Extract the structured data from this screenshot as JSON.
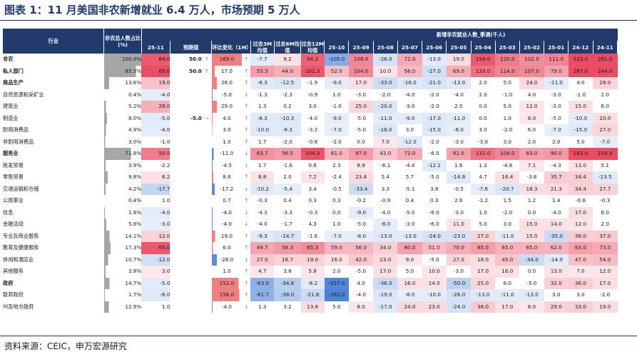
{
  "title": "图表 1：11 月美国非农新增就业 6.4 万人，市场预期 5 万人",
  "source": "资料来源：CEIC，申万宏源研究",
  "colors": {
    "header_bg": "#1f3a6b",
    "pos": "#e8384f",
    "neg": "#2f6fd1",
    "gray": "#a6a6a6",
    "mom_red": "#f08080",
    "mom_blue": "#5b8fd6"
  },
  "chart_data": {
    "type": "table",
    "header": {
      "industry": "行业",
      "share": "非农总人数占比(%)",
      "last": "25-11",
      "consensus": "预期值",
      "mom": "环比变化（1M）",
      "avg3m": "过去3M均值",
      "avg6m": "过去6M均值",
      "avg12m": "过去12M均值",
      "history_group": "新增非农就业人数_季调(千人)",
      "months": [
        "25-10",
        "25-09",
        "25-08",
        "25-07",
        "25-06",
        "25-05",
        "25-04",
        "25-03",
        "25-02",
        "25-01",
        "24-12",
        "24-11"
      ]
    },
    "rows": [
      {
        "name": "非农",
        "level": 0,
        "bold": true,
        "top": true,
        "share": "100.0%",
        "last": "64.0",
        "cons": "50.0",
        "cons_arrow": "up",
        "mom": "169.0",
        "mom_arrow": "up",
        "a3": "-7.7",
        "a6": "9.2",
        "a12": "94.2",
        "h": [
          "-105.0",
          "108.0",
          "-26.0",
          "72.0",
          "-13.0",
          "19.0",
          "158.0",
          "120.0",
          "102.0",
          "111.0",
          "323.0",
          "261.0"
        ]
      },
      {
        "name": "私人部门",
        "level": 1,
        "bold": true,
        "share": "85.3%",
        "last": "69.0",
        "cons": "50.0",
        "cons_arrow": "up",
        "mom": "17.0",
        "mom_arrow": "up",
        "a3": "55.3",
        "a6": "44.0",
        "a12": "102.3",
        "h": [
          "52.0",
          "104.0",
          "10.0",
          "56.0",
          "-27.0",
          "69.0",
          "133.0",
          "114.0",
          "107.0",
          "79.0",
          "287.0",
          "244.0"
        ]
      },
      {
        "name": "商品生产",
        "level": 2,
        "bold": true,
        "top": true,
        "share": "13.6%",
        "last": "19.0",
        "cons": "",
        "cons_arrow": "",
        "mom": "28.0",
        "mom_arrow": "up",
        "a3": "-8.3",
        "a6": "-12.5",
        "a12": "-1.9",
        "h": [
          "-9.0",
          "17.0",
          "-33.0",
          "-16.0",
          "-21.0",
          "-13.0",
          "2.0",
          "5.0",
          "24.0",
          "-11.0",
          "4.0",
          "28.0"
        ]
      },
      {
        "name": "自然资源和采矿业",
        "level": 3,
        "bold": false,
        "share": "0.4%",
        "last": "-4.0",
        "cons": "",
        "cons_arrow": "",
        "mom": "-5.0",
        "mom_arrow": "down",
        "a3": "-1.3",
        "a6": "-2.3",
        "a12": "-0.9",
        "h": [
          "1.0",
          "-3.0",
          "-2.0",
          "-4.0",
          "-2.0",
          "-4.0",
          "2.0",
          "-1.0",
          "4.0",
          "-3.0",
          "-1.0",
          "2.0"
        ]
      },
      {
        "name": "建筑业",
        "level": 3,
        "bold": false,
        "share": "5.2%",
        "last": "28.0",
        "cons": "",
        "cons_arrow": "",
        "mom": "29.0",
        "mom_arrow": "up",
        "a3": "1.3",
        "a6": "0.2",
        "a12": "3.0",
        "h": [
          "-1.0",
          "25.0",
          "-20.0",
          "-3.0",
          "-2.0",
          "2.0",
          "0.0",
          "5.0",
          "12.0",
          "-3.0",
          "15.0",
          "6.0"
        ]
      },
      {
        "name": "制造业",
        "level": 3,
        "bold": false,
        "share": "8.0%",
        "last": "-5.0",
        "cons": "-5.0",
        "cons_arrow": "flat",
        "mom": "4.0",
        "mom_arrow": "up",
        "a3": "-8.3",
        "a6": "-10.3",
        "a12": "-4.0",
        "h": [
          "-9.0",
          "-5.0",
          "-11.0",
          "-9.0",
          "-17.0",
          "-11.0",
          "0.0",
          "1.0",
          "8.0",
          "-5.0",
          "-10.0",
          "20.0"
        ]
      },
      {
        "name": "耐用消费品",
        "level": 4,
        "bold": false,
        "share": "4.9%",
        "last": "-4.0",
        "cons": "",
        "cons_arrow": "",
        "mom": "3.0",
        "mom_arrow": "up",
        "a3": "-10.0",
        "a6": "-8.3",
        "a12": "-3.2",
        "h": [
          "-7.0",
          "-5.0",
          "-18.0",
          "3.0",
          "-15.0",
          "-8.0",
          "3.0",
          "-2.0",
          "6.0",
          "-7.0",
          "-15.0",
          "27.0"
        ]
      },
      {
        "name": "非耐用消费品",
        "level": 4,
        "bold": false,
        "share": "3.0%",
        "last": "-1.0",
        "cons": "",
        "cons_arrow": "",
        "mom": "1.0",
        "mom_arrow": "up",
        "a3": "1.7",
        "a6": "-2.0",
        "a12": "-0.8",
        "h": [
          "-2.0",
          "0.0",
          "7.0",
          "-12.0",
          "-2.0",
          "-3.0",
          "-3.0",
          "3.0",
          "2.0",
          "2.0",
          "5.0",
          "-7.0"
        ]
      },
      {
        "name": "服务业",
        "level": 2,
        "bold": true,
        "top": true,
        "share": "71.8%",
        "last": "50.0",
        "cons": "",
        "cons_arrow": "",
        "mom": "-11.0",
        "mom_arrow": "down",
        "a3": "63.7",
        "a6": "56.5",
        "a12": "104.3",
        "h": [
          "61.0",
          "87.0",
          "43.0",
          "72.0",
          "-6.0",
          "82.0",
          "131.0",
          "109.0",
          "83.0",
          "90.0",
          "283.0",
          "216.0"
        ]
      },
      {
        "name": "批发贸易",
        "level": 3,
        "bold": false,
        "top": true,
        "share": "3.9%",
        "last": "-2.2",
        "cons": "",
        "cons_arrow": "",
        "mom": "-4.5",
        "mom_arrow": "down",
        "a3": "1.7",
        "a6": "-1.6",
        "a12": "0.6",
        "h": [
          "2.3",
          "8.9",
          "-6.1",
          "-4.4",
          "-12.1",
          "1.6",
          "1.3",
          "-4.8",
          "7.1",
          "-4.3",
          "13.0",
          "5.1"
        ]
      },
      {
        "name": "零售贸易",
        "level": 3,
        "bold": false,
        "share": "9.8%",
        "last": "6.2",
        "cons": "",
        "cons_arrow": "",
        "mom": "8.6",
        "mom_arrow": "up",
        "a3": "8.8",
        "a6": "2.0",
        "a12": "7.2",
        "h": [
          "-2.4",
          "23.4",
          "5.4",
          "5.7",
          "-5.0",
          "-14.8",
          "4.7",
          "16.4",
          "-3.8",
          "35.7",
          "34.4",
          "-13.5"
        ]
      },
      {
        "name": "交通运输和仓储",
        "level": 3,
        "bold": false,
        "share": "4.2%",
        "last": "-17.7",
        "cons": "",
        "cons_arrow": "",
        "mom": "-17.2",
        "mom_arrow": "down",
        "a3": "-10.2",
        "a6": "-5.4",
        "a12": "3.4",
        "h": [
          "-0.5",
          "-33.4",
          "3.3",
          "-5.1",
          "3.8",
          "-0.5",
          "-7.6",
          "-20.7",
          "18.3",
          "21.3",
          "34.4",
          "27.7"
        ]
      },
      {
        "name": "公用事业",
        "level": 3,
        "bold": false,
        "share": "0.4%",
        "last": "1.0",
        "cons": "",
        "cons_arrow": "",
        "mom": "0.7",
        "mom_arrow": "up",
        "a3": "-0.3",
        "a6": "0.4",
        "a12": "0.3",
        "h": [
          "0.3",
          "-0.2",
          "-0.9",
          "0.4",
          "0.3",
          "2.6",
          "-1.2",
          "1.5",
          "1.2",
          "1.4",
          "-0.8",
          "-0.3"
        ]
      },
      {
        "name": "信息",
        "level": 3,
        "bold": false,
        "share": "1.8%",
        "last": "-4.0",
        "cons": "",
        "cons_arrow": "",
        "mom": "-4.0",
        "mom_arrow": "down",
        "a3": "-4.3",
        "a6": "-3.3",
        "a12": "-0.3",
        "h": [
          "0.0",
          "-9.0",
          "-4.0",
          "-5.0",
          "-6.0",
          "-3.0",
          "1.0",
          "-2.0",
          "0.0",
          "-4.0",
          "17.0",
          "6.0"
        ]
      },
      {
        "name": "金融活动",
        "level": 3,
        "bold": false,
        "share": "5.8%",
        "last": "-3.0",
        "cons": "",
        "cons_arrow": "",
        "mom": "-4.0",
        "mom_arrow": "down",
        "a3": "-4.0",
        "a6": "-1.7",
        "a12": "4.3",
        "h": [
          "1.0",
          "-5.0",
          "-8.0",
          "-3.0",
          "-6.0",
          "11.0",
          "5.0",
          "3.0",
          "15.0",
          "14.0",
          "12.0",
          "2.0"
        ]
      },
      {
        "name": "专业及商业服务",
        "level": 3,
        "bold": false,
        "share": "14.1%",
        "last": "12.0",
        "cons": "",
        "cons_arrow": "",
        "mom": "19.0",
        "mom_arrow": "up",
        "a3": "-9.3",
        "a6": "-14.7",
        "a12": "-1.6",
        "h": [
          "-7.0",
          "-8.0",
          "-13.0",
          "-13.0",
          "-24.0",
          "-23.0",
          "27.0",
          "-11.0",
          "15.0",
          "-35.0",
          "36.0",
          "37.0"
        ]
      },
      {
        "name": "教育及健康服务",
        "level": 3,
        "bold": false,
        "share": "17.3%",
        "last": "65.0",
        "cons": "",
        "cons_arrow": "",
        "mom": "6.0",
        "mom_arrow": "up",
        "a3": "49.7",
        "a6": "58.3",
        "a12": "65.3",
        "h": [
          "59.0",
          "56.0",
          "34.0",
          "80.0",
          "51.0",
          "70.0",
          "85.0",
          "65.0",
          "65.0",
          "62.0",
          "83.0",
          "73.0"
        ]
      },
      {
        "name": "休闲和酒店业",
        "level": 3,
        "bold": false,
        "share": "10.7%",
        "last": "-12.0",
        "cons": "",
        "cons_arrow": "",
        "mom": "-28.0",
        "mom_arrow": "down",
        "a3": "27.0",
        "a6": "18.7",
        "a12": "19.0",
        "h": [
          "16.0",
          "42.0",
          "23.0",
          "9.0",
          "-5.0",
          "27.0",
          "18.0",
          "45.0",
          "-34.0",
          "-14.0",
          "47.0",
          "54.0"
        ]
      },
      {
        "name": "其他服务",
        "level": 3,
        "bold": false,
        "share": "3.8%",
        "last": "3.0",
        "cons": "",
        "cons_arrow": "",
        "mom": "1.0",
        "mom_arrow": "up",
        "a3": "4.7",
        "a6": "3.8",
        "a12": "5.8",
        "h": [
          "2.0",
          "-5.0",
          "17.0",
          "5.0",
          "10.0",
          "-3.0",
          "17.0",
          "16.0",
          "0.0",
          "13.0",
          "7.0",
          "12.0"
        ]
      },
      {
        "name": "政府",
        "level": 1,
        "bold": true,
        "top": true,
        "share": "14.7%",
        "last": "-5.0",
        "cons": "",
        "cons_arrow": "",
        "mom": "152.0",
        "mom_arrow": "up",
        "a3": "-63.0",
        "a6": "-34.8",
        "a12": "-8.2",
        "h": [
          "-157.0",
          "4.0",
          "-36.0",
          "16.0",
          "14.0",
          "-50.0",
          "25.0",
          "6.0",
          "-5.0",
          "32.0",
          "36.0",
          "17.0"
        ]
      },
      {
        "name": "联邦政府",
        "level": 2,
        "bold": false,
        "top": true,
        "share": "1.7%",
        "last": "-6.0",
        "cons": "",
        "cons_arrow": "",
        "mom": "156.0",
        "mom_arrow": "up",
        "a3": "-61.7",
        "a6": "-38.0",
        "a12": "-21.8",
        "h": [
          "-162.0",
          "-4.0",
          "-19.0",
          "-8.0",
          "-10.0",
          "-26.0",
          "-13.0",
          "-11.0",
          "-13.0",
          "3.0",
          "3.0",
          "-2.0"
        ]
      },
      {
        "name": "州及地方政府",
        "level": 2,
        "bold": false,
        "share": "12.9%",
        "last": "1.0",
        "cons": "",
        "cons_arrow": "",
        "mom": "-4.0",
        "mom_arrow": "down",
        "a3": "1.3",
        "a6": "3.2",
        "a12": "13.6",
        "h": [
          "5.0",
          "8.0",
          "-17.0",
          "24.0",
          "23.0",
          "-24.0",
          "38.0",
          "17.0",
          "8.0",
          "29.0",
          "33.0",
          "19.0"
        ]
      }
    ]
  }
}
